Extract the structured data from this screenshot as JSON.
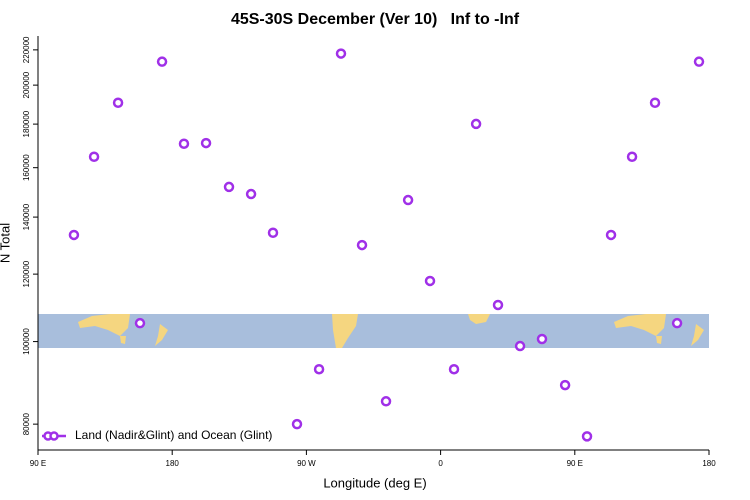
{
  "chart_data": {
    "type": "scatter",
    "title": "45S-30S December (Ver 10)   Inf to -Inf",
    "xlabel": "Longitude (deg E)",
    "ylabel": "N Total",
    "log_y": true,
    "legend_position": "lower left",
    "series": [
      {
        "name": "Land (Nadir&Glint) and Ocean (Glint)",
        "color": "#a030e8",
        "x": [
          114.1,
          127.6,
          143.7,
          158.4,
          173.2,
          187.9,
          202.7,
          218.1,
          232.9,
          247.6,
          263.7,
          278.5,
          293.2,
          307.3,
          323.4,
          338.2,
          352.9,
          369.0,
          383.8,
          398.5,
          413.3,
          428.0,
          443.5,
          458.2,
          474.3,
          488.4,
          503.8,
          518.6,
          533.3
        ],
        "values": [
          133400,
          164800,
          190700,
          105100,
          213100,
          170700,
          171000,
          151900,
          149000,
          134200,
          80000,
          92800,
          217800,
          129800,
          85100,
          146600,
          117800,
          92800,
          180100,
          110400,
          98800,
          100700,
          88900,
          77400,
          133400,
          164800,
          190700,
          105100,
          213100
        ]
      }
    ],
    "xlim": [
      90,
      540
    ],
    "xticks": [
      {
        "value": 90,
        "label": "90 E"
      },
      180,
      {
        "value": 270,
        "label": "90 W"
      },
      {
        "value": 360,
        "label": "0"
      },
      {
        "value": 450,
        "label": "90 E"
      },
      {
        "value": 540,
        "label": "180"
      }
    ],
    "ylim": [
      74600,
      228400
    ],
    "yticks": [
      80000,
      100000,
      120000,
      140000,
      160000,
      180000,
      200000,
      220000
    ]
  }
}
